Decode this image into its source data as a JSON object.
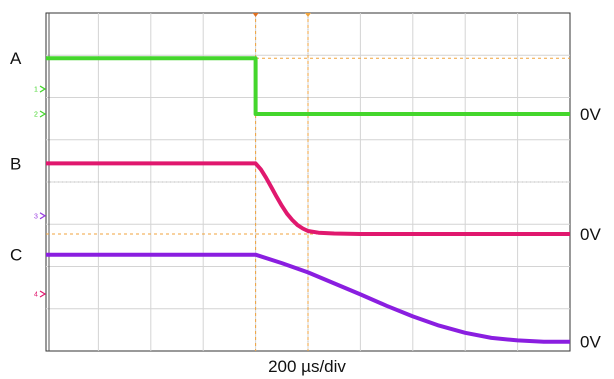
{
  "chart_data": {
    "type": "line",
    "title": "",
    "xlabel": "200 µs/div",
    "ylabel": "",
    "grid": true,
    "x_divisions": 10,
    "y_divisions": 8,
    "x_range_div": [
      0,
      10
    ],
    "y_range_div": [
      0,
      8
    ],
    "trigger_time_div": 4.0,
    "cursor_time_div": 5.0,
    "series": [
      {
        "name": "A",
        "channel": "1",
        "color": "#44d62c",
        "zero_label": "0V",
        "points_div": [
          [
            0.0,
            6.93
          ],
          [
            4.0,
            6.93
          ],
          [
            4.0,
            5.61
          ],
          [
            10.0,
            5.61
          ]
        ]
      },
      {
        "name": "B",
        "channel": "2",
        "color": "#e0186e",
        "zero_label": "0V",
        "points_div": [
          [
            0.0,
            4.44
          ],
          [
            4.0,
            4.44
          ],
          [
            4.1,
            4.3
          ],
          [
            4.2,
            4.1
          ],
          [
            4.3,
            3.88
          ],
          [
            4.4,
            3.65
          ],
          [
            4.5,
            3.44
          ],
          [
            4.6,
            3.25
          ],
          [
            4.7,
            3.1
          ],
          [
            4.8,
            2.98
          ],
          [
            4.9,
            2.9
          ],
          [
            5.0,
            2.84
          ],
          [
            5.2,
            2.8
          ],
          [
            5.5,
            2.78
          ],
          [
            6.0,
            2.77
          ],
          [
            10.0,
            2.77
          ]
        ]
      },
      {
        "name": "C",
        "channel": "3",
        "color": "#8a1ee0",
        "zero_label": "0V",
        "points_div": [
          [
            0.0,
            2.28
          ],
          [
            4.0,
            2.28
          ],
          [
            4.5,
            2.08
          ],
          [
            5.0,
            1.86
          ],
          [
            5.5,
            1.6
          ],
          [
            6.0,
            1.34
          ],
          [
            6.5,
            1.07
          ],
          [
            7.0,
            0.82
          ],
          [
            7.5,
            0.6
          ],
          [
            8.0,
            0.43
          ],
          [
            8.5,
            0.31
          ],
          [
            9.0,
            0.25
          ],
          [
            9.5,
            0.22
          ],
          [
            10.0,
            0.22
          ]
        ]
      }
    ],
    "channel_markers": [
      {
        "label": "1",
        "y_div": 6.2,
        "color": "#44d62c"
      },
      {
        "label": "2",
        "y_div": 5.61,
        "color": "#44d62c"
      },
      {
        "label": "3",
        "y_div": 3.2,
        "color": "#9a3ee0"
      },
      {
        "label": "4",
        "y_div": 1.35,
        "color": "#e0186e"
      }
    ],
    "cursor_lines_y_div": [
      6.93,
      2.77
    ]
  }
}
